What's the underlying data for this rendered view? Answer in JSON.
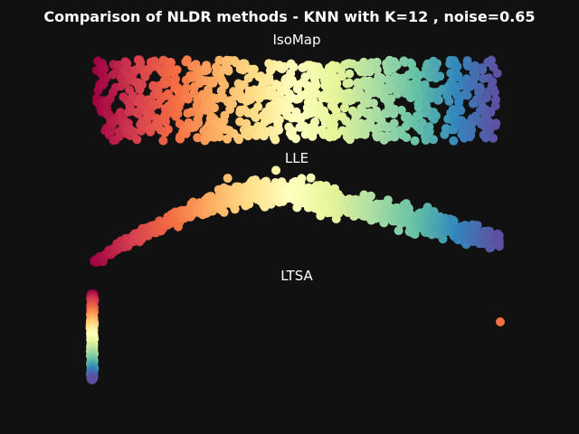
{
  "figure": {
    "background": "#111111",
    "title": "Comparison of NLDR methods - KNN with K=12 , noise=0.65"
  },
  "colormap": {
    "name": "Spectral",
    "stops": [
      "#9e0142",
      "#d53e4f",
      "#f46d43",
      "#fdae61",
      "#fee08b",
      "#ffffbf",
      "#e6f598",
      "#abdda4",
      "#66c2a5",
      "#3288bd",
      "#5e4fa2"
    ]
  },
  "chart_data": [
    {
      "type": "scatter",
      "title": "IsoMap",
      "axes": "off",
      "description_points": "rectangular band of points colored by position along manifold (t from 0 to 1)",
      "point_count": 1000,
      "xlim": [
        0,
        1
      ],
      "ylim": [
        0,
        1
      ]
    },
    {
      "type": "scatter",
      "title": "LLE",
      "axes": "off",
      "point_count": 1000,
      "xlim": [
        0,
        1
      ],
      "ylim": [
        0,
        1
      ]
    },
    {
      "type": "scatter",
      "title": "LTSA",
      "axes": "off",
      "point_count": 1000,
      "xlim": [
        0,
        1
      ],
      "ylim": [
        0,
        1
      ],
      "outlier": {
        "x": 1.0,
        "y": 0.65,
        "t": 0.2
      }
    }
  ]
}
